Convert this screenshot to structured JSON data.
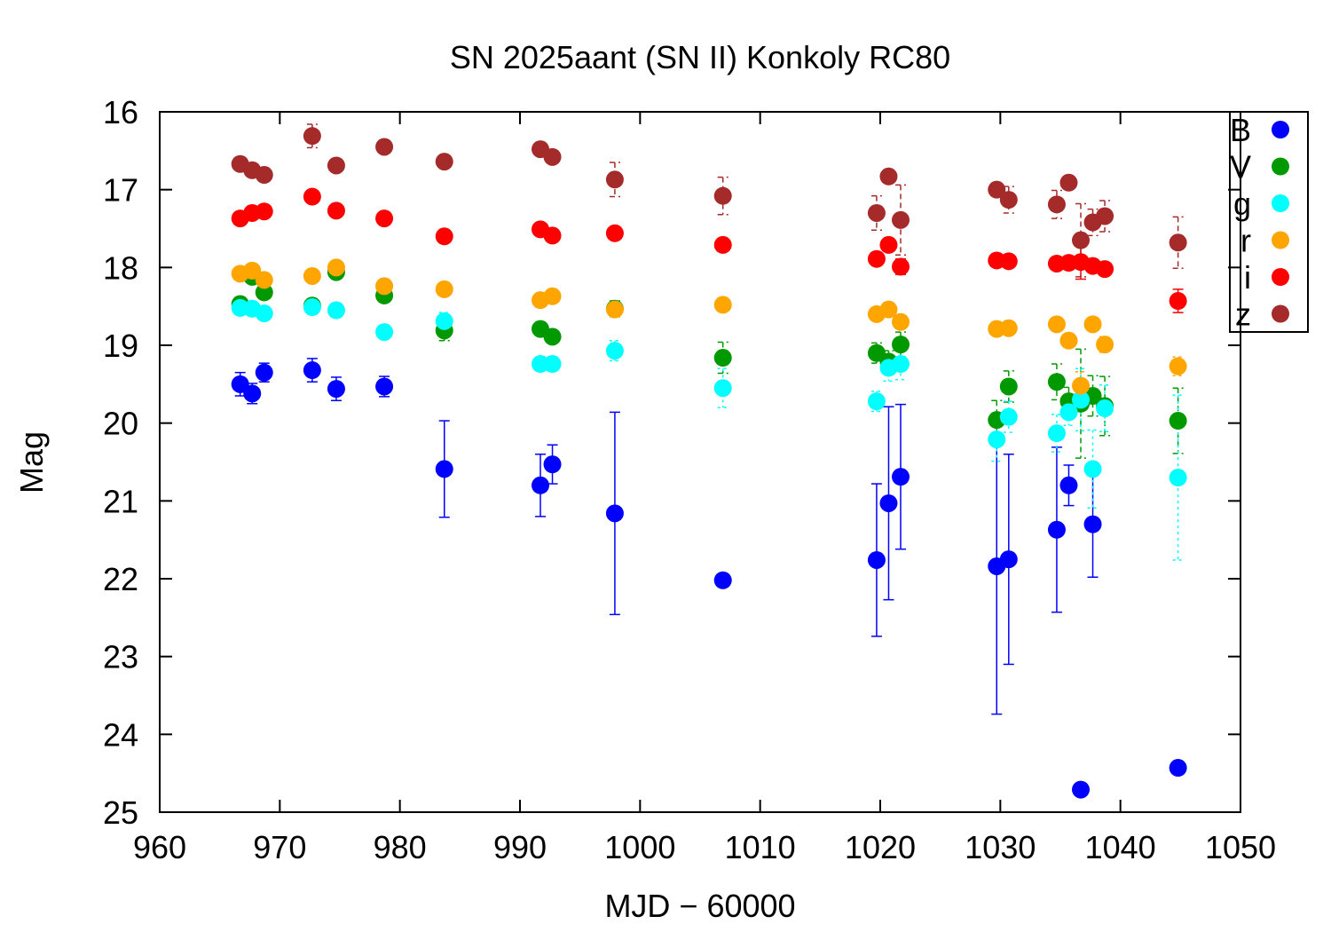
{
  "chart_data": {
    "type": "scatter",
    "title": "SN 2025aant (SN II) Konkoly RC80",
    "xlabel": "MJD − 60000",
    "ylabel": "Mag",
    "xlim": [
      960,
      1050
    ],
    "ylim": [
      25,
      16
    ],
    "y_inverted": true,
    "grid": false,
    "legend_position": "top-right",
    "xticks": [
      "960",
      "970",
      "980",
      "990",
      "1000",
      "1010",
      "1020",
      "1030",
      "1040",
      "1050"
    ],
    "yticks": [
      "16",
      "17",
      "18",
      "19",
      "20",
      "21",
      "22",
      "23",
      "24",
      "25"
    ],
    "series": [
      {
        "name": "B",
        "color": "#0000ff",
        "errstyle": "solid",
        "points": [
          {
            "x": 966.7,
            "y": 19.5,
            "err": 0.15
          },
          {
            "x": 967.7,
            "y": 19.62,
            "err": 0.13
          },
          {
            "x": 968.7,
            "y": 19.35,
            "err": 0.12
          },
          {
            "x": 972.7,
            "y": 19.32,
            "err": 0.15
          },
          {
            "x": 974.7,
            "y": 19.56,
            "err": 0.15
          },
          {
            "x": 978.7,
            "y": 19.53,
            "err": 0.13
          },
          {
            "x": 983.7,
            "y": 20.59,
            "err": 0.62
          },
          {
            "x": 991.7,
            "y": 20.8,
            "err": 0.4
          },
          {
            "x": 992.7,
            "y": 20.53,
            "err": 0.25
          },
          {
            "x": 997.9,
            "y": 21.16,
            "err": 1.3
          },
          {
            "x": 1006.9,
            "y": 22.02,
            "err": 0
          },
          {
            "x": 1019.7,
            "y": 21.76,
            "err": 0.98
          },
          {
            "x": 1020.7,
            "y": 21.03,
            "err": 1.24
          },
          {
            "x": 1021.7,
            "y": 20.69,
            "err": 0.93
          },
          {
            "x": 1029.7,
            "y": 21.84,
            "err": 1.9
          },
          {
            "x": 1030.7,
            "y": 21.75,
            "err": 1.35
          },
          {
            "x": 1034.7,
            "y": 21.37,
            "err": 1.06
          },
          {
            "x": 1035.7,
            "y": 20.8,
            "err": 0.26
          },
          {
            "x": 1036.7,
            "y": 24.71,
            "err": 0.05
          },
          {
            "x": 1037.7,
            "y": 21.3,
            "err": 0.68
          },
          {
            "x": 1044.8,
            "y": 24.43,
            "err": 0
          }
        ]
      },
      {
        "name": "V",
        "color": "#009900",
        "errstyle": "dashed",
        "points": [
          {
            "x": 966.7,
            "y": 18.47,
            "err": 0.05
          },
          {
            "x": 967.7,
            "y": 18.12,
            "err": 0.04
          },
          {
            "x": 968.7,
            "y": 18.32,
            "err": 0.04
          },
          {
            "x": 972.7,
            "y": 18.49,
            "err": 0.05
          },
          {
            "x": 974.7,
            "y": 18.06,
            "err": 0.04
          },
          {
            "x": 978.7,
            "y": 18.36,
            "err": 0.04
          },
          {
            "x": 983.7,
            "y": 18.81,
            "err": 0.13
          },
          {
            "x": 991.7,
            "y": 18.79,
            "err": 0.07
          },
          {
            "x": 992.7,
            "y": 18.89,
            "err": 0.05
          },
          {
            "x": 997.9,
            "y": 18.53,
            "err": 0.1
          },
          {
            "x": 1006.9,
            "y": 19.16,
            "err": 0.2
          },
          {
            "x": 1019.7,
            "y": 19.1,
            "err": 0.13
          },
          {
            "x": 1020.7,
            "y": 19.21,
            "err": 0.14
          },
          {
            "x": 1021.7,
            "y": 18.99,
            "err": 0.16
          },
          {
            "x": 1029.7,
            "y": 19.96,
            "err": 0.25
          },
          {
            "x": 1030.7,
            "y": 19.53,
            "err": 0.2
          },
          {
            "x": 1034.7,
            "y": 19.47,
            "err": 0.23
          },
          {
            "x": 1035.7,
            "y": 19.72,
            "err": 0.18
          },
          {
            "x": 1036.7,
            "y": 19.75,
            "err": 0.7
          },
          {
            "x": 1037.7,
            "y": 19.65,
            "err": 0.26
          },
          {
            "x": 1038.7,
            "y": 19.78,
            "err": 0.38
          },
          {
            "x": 1044.8,
            "y": 19.97,
            "err": 0.42
          }
        ]
      },
      {
        "name": "g",
        "color": "#00ffff",
        "errstyle": "dotted",
        "points": [
          {
            "x": 966.7,
            "y": 18.52,
            "err": 0.04
          },
          {
            "x": 967.7,
            "y": 18.53,
            "err": 0.04
          },
          {
            "x": 968.7,
            "y": 18.59,
            "err": 0.04
          },
          {
            "x": 972.7,
            "y": 18.51,
            "err": 0.05
          },
          {
            "x": 974.7,
            "y": 18.55,
            "err": 0.04
          },
          {
            "x": 978.7,
            "y": 18.83,
            "err": 0.04
          },
          {
            "x": 983.7,
            "y": 18.69,
            "err": 0.11
          },
          {
            "x": 991.7,
            "y": 19.24,
            "err": 0.06
          },
          {
            "x": 992.7,
            "y": 19.24,
            "err": 0.06
          },
          {
            "x": 997.9,
            "y": 19.07,
            "err": 0.13
          },
          {
            "x": 1006.9,
            "y": 19.55,
            "err": 0.25
          },
          {
            "x": 1019.7,
            "y": 19.72,
            "err": 0.13
          },
          {
            "x": 1020.7,
            "y": 19.29,
            "err": 0.17
          },
          {
            "x": 1021.7,
            "y": 19.24,
            "err": 0.2
          },
          {
            "x": 1029.7,
            "y": 20.21,
            "err": 0.28
          },
          {
            "x": 1030.7,
            "y": 19.92,
            "err": 0.2
          },
          {
            "x": 1034.7,
            "y": 20.13,
            "err": 0.24
          },
          {
            "x": 1035.7,
            "y": 19.86,
            "err": 0.17
          },
          {
            "x": 1036.7,
            "y": 19.7,
            "err": 0.4
          },
          {
            "x": 1037.7,
            "y": 20.59,
            "err": 0.5
          },
          {
            "x": 1038.7,
            "y": 19.81,
            "err": 0.3
          },
          {
            "x": 1044.8,
            "y": 20.7,
            "err": 1.06
          }
        ]
      },
      {
        "name": "r",
        "color": "#ffa500",
        "errstyle": "dotted",
        "points": [
          {
            "x": 966.7,
            "y": 18.08,
            "err": 0.03
          },
          {
            "x": 967.7,
            "y": 18.04,
            "err": 0.03
          },
          {
            "x": 968.7,
            "y": 18.16,
            "err": 0.03
          },
          {
            "x": 972.7,
            "y": 18.11,
            "err": 0.03
          },
          {
            "x": 974.7,
            "y": 18.0,
            "err": 0.03
          },
          {
            "x": 978.7,
            "y": 18.24,
            "err": 0.03
          },
          {
            "x": 983.7,
            "y": 18.28,
            "err": 0.04
          },
          {
            "x": 991.7,
            "y": 18.42,
            "err": 0.04
          },
          {
            "x": 992.7,
            "y": 18.37,
            "err": 0.04
          },
          {
            "x": 997.9,
            "y": 18.54,
            "err": 0.05
          },
          {
            "x": 1006.9,
            "y": 18.48,
            "err": 0.05
          },
          {
            "x": 1019.7,
            "y": 18.6,
            "err": 0.06
          },
          {
            "x": 1020.7,
            "y": 18.54,
            "err": 0.06
          },
          {
            "x": 1021.7,
            "y": 18.7,
            "err": 0.07
          },
          {
            "x": 1029.7,
            "y": 18.79,
            "err": 0.05
          },
          {
            "x": 1030.7,
            "y": 18.78,
            "err": 0.05
          },
          {
            "x": 1034.7,
            "y": 18.73,
            "err": 0.05
          },
          {
            "x": 1035.7,
            "y": 18.94,
            "err": 0.06
          },
          {
            "x": 1036.7,
            "y": 19.52,
            "err": 0.18
          },
          {
            "x": 1037.7,
            "y": 18.73,
            "err": 0.05
          },
          {
            "x": 1038.7,
            "y": 18.99,
            "err": 0.1
          },
          {
            "x": 1044.8,
            "y": 19.27,
            "err": 0.12
          }
        ]
      },
      {
        "name": "i",
        "color": "#ff0000",
        "errstyle": "solid",
        "points": [
          {
            "x": 966.7,
            "y": 17.37,
            "err": 0.02
          },
          {
            "x": 967.7,
            "y": 17.3,
            "err": 0.02
          },
          {
            "x": 968.7,
            "y": 17.28,
            "err": 0.02
          },
          {
            "x": 972.7,
            "y": 17.09,
            "err": 0.02
          },
          {
            "x": 974.7,
            "y": 17.27,
            "err": 0.02
          },
          {
            "x": 978.7,
            "y": 17.37,
            "err": 0.02
          },
          {
            "x": 983.7,
            "y": 17.6,
            "err": 0.03
          },
          {
            "x": 991.7,
            "y": 17.51,
            "err": 0.03
          },
          {
            "x": 992.7,
            "y": 17.59,
            "err": 0.03
          },
          {
            "x": 997.9,
            "y": 17.56,
            "err": 0.03
          },
          {
            "x": 1006.9,
            "y": 17.71,
            "err": 0.03
          },
          {
            "x": 1019.7,
            "y": 17.89,
            "err": 0.04
          },
          {
            "x": 1020.7,
            "y": 17.71,
            "err": 0.06
          },
          {
            "x": 1021.7,
            "y": 17.99,
            "err": 0.1
          },
          {
            "x": 1029.7,
            "y": 17.91,
            "err": 0.03
          },
          {
            "x": 1030.7,
            "y": 17.92,
            "err": 0.03
          },
          {
            "x": 1034.7,
            "y": 17.95,
            "err": 0.03
          },
          {
            "x": 1035.7,
            "y": 17.94,
            "err": 0.03
          },
          {
            "x": 1036.7,
            "y": 17.93,
            "err": 0.22
          },
          {
            "x": 1037.7,
            "y": 17.98,
            "err": 0.03
          },
          {
            "x": 1038.7,
            "y": 18.02,
            "err": 0.03
          },
          {
            "x": 1044.8,
            "y": 18.43,
            "err": 0.15
          }
        ]
      },
      {
        "name": "z",
        "color": "#a52a2a",
        "errstyle": "dashed",
        "points": [
          {
            "x": 966.7,
            "y": 16.67,
            "err": 0.07
          },
          {
            "x": 967.7,
            "y": 16.75,
            "err": 0.06
          },
          {
            "x": 968.7,
            "y": 16.81,
            "err": 0.07
          },
          {
            "x": 972.7,
            "y": 16.31,
            "err": 0.15
          },
          {
            "x": 974.7,
            "y": 16.69,
            "err": 0.07
          },
          {
            "x": 978.7,
            "y": 16.45,
            "err": 0.05
          },
          {
            "x": 983.7,
            "y": 16.64,
            "err": 0.07
          },
          {
            "x": 991.7,
            "y": 16.48,
            "err": 0.05
          },
          {
            "x": 992.7,
            "y": 16.58,
            "err": 0.07
          },
          {
            "x": 997.9,
            "y": 16.87,
            "err": 0.22
          },
          {
            "x": 1006.9,
            "y": 17.08,
            "err": 0.24
          },
          {
            "x": 1019.7,
            "y": 17.3,
            "err": 0.22
          },
          {
            "x": 1020.7,
            "y": 16.83,
            "err": 0.08
          },
          {
            "x": 1021.7,
            "y": 17.39,
            "err": 0.45
          },
          {
            "x": 1029.7,
            "y": 17.0,
            "err": 0.07
          },
          {
            "x": 1030.7,
            "y": 17.13,
            "err": 0.17
          },
          {
            "x": 1034.7,
            "y": 17.19,
            "err": 0.18
          },
          {
            "x": 1035.7,
            "y": 16.91,
            "err": 0.05
          },
          {
            "x": 1036.7,
            "y": 17.65,
            "err": 0.47
          },
          {
            "x": 1037.7,
            "y": 17.42,
            "err": 0.17
          },
          {
            "x": 1038.7,
            "y": 17.34,
            "err": 0.2
          },
          {
            "x": 1044.8,
            "y": 17.68,
            "err": 0.33
          }
        ]
      }
    ]
  }
}
